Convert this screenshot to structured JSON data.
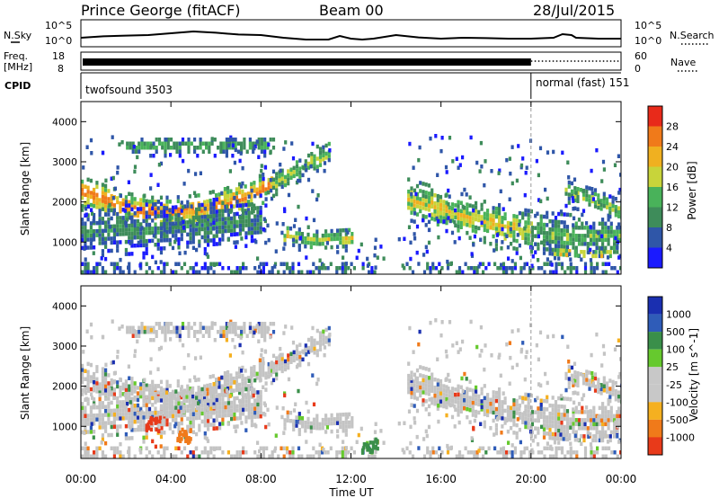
{
  "header": {
    "title": "Prince George (fitACF)",
    "beam": "Beam 00",
    "date": "28/Jul/2015"
  },
  "noise_panel": {
    "sky_label": "N.Sky",
    "search_label": "N.Search",
    "left_ticks": [
      "10^5",
      "10^0"
    ],
    "right_ticks": [
      "10^5",
      "10^0"
    ],
    "sky_trace": {
      "hours": [
        0,
        1,
        2,
        3,
        4,
        5,
        6,
        7,
        8,
        9,
        10,
        11,
        11.5,
        12,
        12.5,
        13,
        14,
        15,
        16,
        17,
        18,
        19,
        20,
        21,
        21.4,
        21.8,
        22,
        23,
        24
      ],
      "level": [
        0.2,
        0.28,
        0.32,
        0.35,
        0.45,
        0.55,
        0.48,
        0.38,
        0.35,
        0.2,
        0.1,
        0.1,
        0.3,
        0.15,
        0.1,
        0.15,
        0.35,
        0.22,
        0.15,
        0.2,
        0.18,
        0.15,
        0.15,
        0.2,
        0.4,
        0.35,
        0.2,
        0.15,
        0.15
      ]
    }
  },
  "freq_panel": {
    "label_lines": [
      "Freq.",
      "[MHz]"
    ],
    "left_ticks": [
      "18",
      "8"
    ],
    "right_ticks": [
      "60",
      "0"
    ],
    "nave_label": "Nave",
    "freq_until_hour": 20
  },
  "cpid_panel": {
    "label": "CPID",
    "programs": [
      {
        "label": "twofsound 3503",
        "start_hour": 0
      },
      {
        "label": "normal (fast) 151",
        "start_hour": 20
      }
    ]
  },
  "chart_data": [
    {
      "type": "heatmap",
      "name": "power",
      "xlabel": "",
      "ylabel": "Slant Range [km]",
      "xlim": [
        0,
        24
      ],
      "ylim": [
        200,
        4500
      ],
      "yticks": [
        1000,
        2000,
        3000,
        4000
      ],
      "xticks": [
        0,
        4,
        8,
        12,
        16,
        20,
        24
      ],
      "colorbar": {
        "label": "Power [dB]",
        "ticks": [
          "4",
          "8",
          "12",
          "16",
          "20",
          "24",
          "28"
        ],
        "colors": [
          "#1a1aff",
          "#2f56a8",
          "#3e8c5a",
          "#49b25a",
          "#c8d43a",
          "#f0b020",
          "#f07a1a",
          "#e82a1a"
        ]
      },
      "echo_regions": [
        {
          "from_hour": 0.0,
          "to_hour": 4.0,
          "centre_km": [
            2200,
            2000,
            1800,
            1700,
            1700
          ],
          "thickness_km": 450,
          "peak_db": 26
        },
        {
          "from_hour": 4.0,
          "to_hour": 8.5,
          "centre_km": [
            1700,
            1750,
            1900,
            2100,
            2400
          ],
          "thickness_km": 450,
          "peak_db": 26
        },
        {
          "from_hour": 8.5,
          "to_hour": 11.0,
          "centre_km": [
            2400,
            2800,
            3200
          ],
          "thickness_km": 400,
          "peak_db": 16
        },
        {
          "from_hour": 2.0,
          "to_hour": 8.5,
          "centre_km": [
            3350,
            3350,
            3350
          ],
          "thickness_km": 250,
          "peak_db": 14
        },
        {
          "from_hour": 0.0,
          "to_hour": 8.0,
          "centre_km": [
            1200,
            1300,
            1500
          ],
          "thickness_km": 700,
          "peak_db": 10
        },
        {
          "from_hour": 9.0,
          "to_hour": 12.0,
          "centre_km": [
            1100,
            1000,
            1050
          ],
          "thickness_km": 300,
          "peak_db": 18
        },
        {
          "from_hour": 14.5,
          "to_hour": 20.0,
          "centre_km": [
            2000,
            1700,
            1400,
            1200
          ],
          "thickness_km": 600,
          "peak_db": 20
        },
        {
          "from_hour": 20.0,
          "to_hour": 24.0,
          "centre_km": [
            1200,
            1100,
            1100
          ],
          "thickness_km": 600,
          "peak_db": 14
        },
        {
          "from_hour": 21.5,
          "to_hour": 24.0,
          "centre_km": [
            2200,
            2000,
            1700
          ],
          "thickness_km": 350,
          "peak_db": 16
        },
        {
          "from_hour": 21.0,
          "to_hour": 23.5,
          "centre_km": [
            700,
            650,
            650
          ],
          "thickness_km": 150,
          "peak_db": 24
        }
      ]
    },
    {
      "type": "heatmap",
      "name": "velocity",
      "xlabel": "Time UT",
      "ylabel": "Slant Range [km]",
      "xlim": [
        0,
        24
      ],
      "ylim": [
        200,
        4500
      ],
      "yticks": [
        1000,
        2000,
        3000,
        4000
      ],
      "xticks": [
        0,
        4,
        8,
        12,
        16,
        20,
        24
      ],
      "time_labels": [
        "00:00",
        "04:00",
        "08:00",
        "12:00",
        "16:00",
        "20:00",
        "00:00"
      ],
      "colorbar": {
        "label": "Velocity [m s^-1]",
        "ticks": [
          "1000",
          "500",
          "100",
          "25",
          "-25",
          "-100",
          "-500",
          "-1000"
        ],
        "colors": [
          "#1a2fb0",
          "#2f5cb8",
          "#3a8f4a",
          "#66c92e",
          "#c8c8c8",
          "#c8c8c8",
          "#f5b020",
          "#f07a1a",
          "#e83a1a"
        ]
      },
      "ground_scatter_grey": "#c4c4c4",
      "notable_patches": [
        {
          "hour": 4.5,
          "range_km": 700,
          "velocity_ms": -500
        },
        {
          "hour": 3.2,
          "range_km": 1000,
          "velocity_ms": -1000
        },
        {
          "hour": 12.8,
          "range_km": 450,
          "velocity_ms": 100
        }
      ]
    }
  ]
}
